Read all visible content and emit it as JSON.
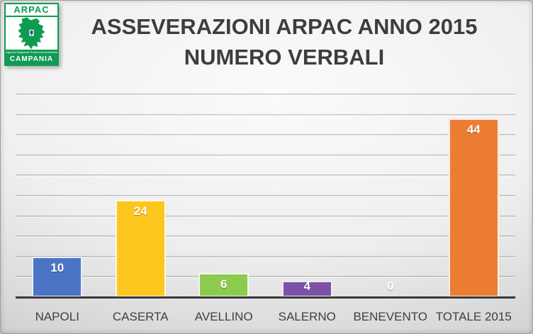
{
  "logo": {
    "brand": "ARPAC",
    "subtext": "Agenzia Regionale Protezione Ambientale",
    "region": "CAMPANIA",
    "green": "#0f9b52"
  },
  "title": {
    "line1": "ASSEVERAZIONI ARPAC ANNO 2015",
    "line2": "NUMERO VERBALI"
  },
  "chart_data": {
    "type": "bar",
    "title": "ASSEVERAZIONI ARPAC ANNO 2015 NUMERO VERBALI",
    "categories": [
      "NAPOLI",
      "CASERTA",
      "AVELLINO",
      "SALERNO",
      "BENEVENTO",
      "TOTALE 2015"
    ],
    "values": [
      10,
      24,
      6,
      4,
      0,
      44
    ],
    "value_labels": [
      "10",
      "24",
      "6",
      "4",
      "0",
      "44"
    ],
    "bar_colors": [
      "#4c74c6",
      "#fcc61d",
      "#8ccb4d",
      "#7b52a5",
      null,
      "#ec7d33"
    ],
    "xlabel": "",
    "ylabel": "",
    "ylim": [
      0,
      50
    ],
    "gridline_step": 5,
    "grid": true,
    "legend": false,
    "y_tick_labels_visible": false,
    "colors": {
      "axis": "#383838",
      "grid": "rgba(0,0,0,0.20)",
      "value_label_text": "#ffffff",
      "category_label_text": "#3f3f3f",
      "title_text": "#3d3d3d"
    }
  }
}
